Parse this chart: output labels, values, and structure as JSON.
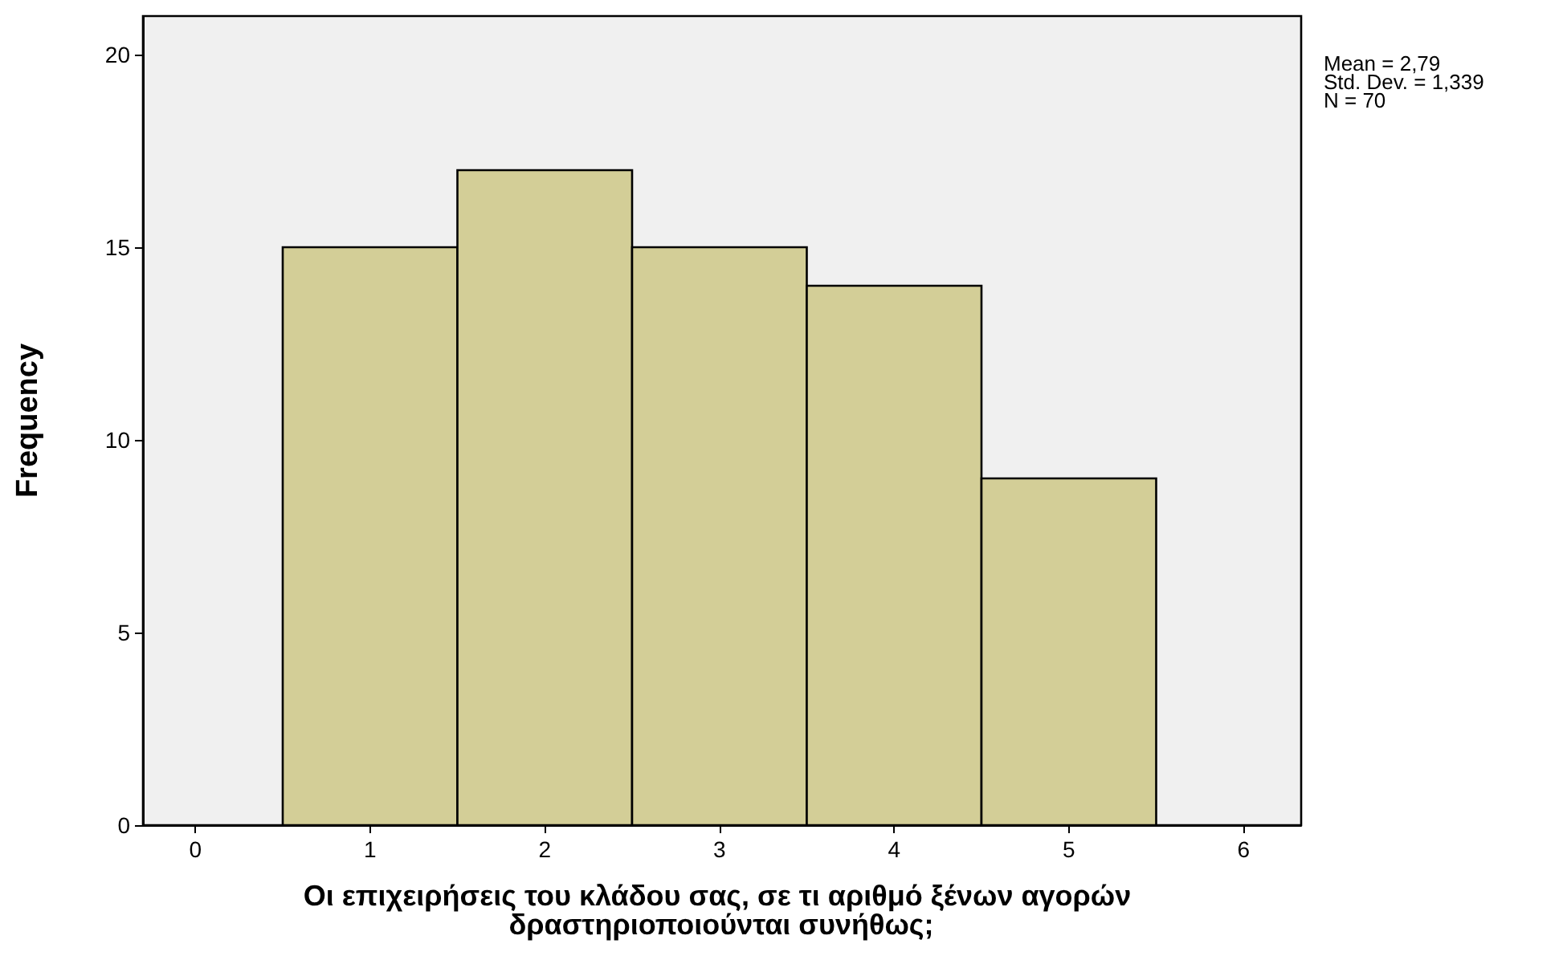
{
  "chart_data": {
    "type": "histogram",
    "bins": [
      0.5,
      1.5,
      2.5,
      3.5,
      4.5,
      5.5
    ],
    "values": [
      15,
      17,
      15,
      14,
      9
    ],
    "color": "#d3ce97",
    "xlabel": "Οι επιχειρήσεις του κλάδου σας, σε τι αριθμό ξένων αγορών δραστηριοποιούνται συνήθως;",
    "ylabel": "Frequency",
    "xlim": [
      -0.3,
      6.33
    ],
    "xticks": [
      0,
      1,
      2,
      3,
      4,
      5,
      6
    ],
    "ylim": [
      0,
      21
    ],
    "yticks": [
      0,
      5,
      10,
      15,
      20
    ],
    "annotations": [
      "Mean = 2,79",
      "Std. Dev. = 1,339",
      "N = 70"
    ],
    "tick_labels": "xy"
  }
}
